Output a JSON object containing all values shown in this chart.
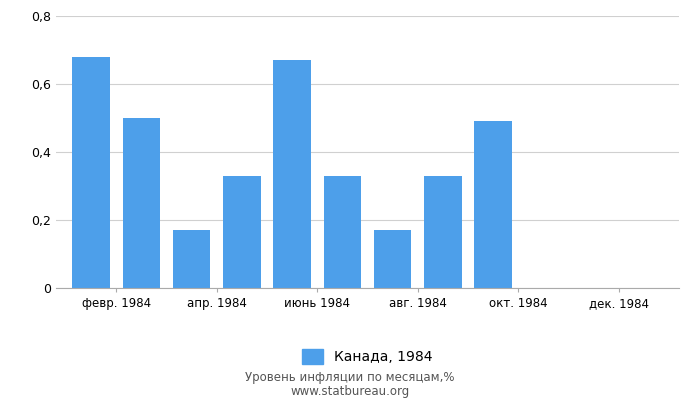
{
  "all_values": [
    0.68,
    0.5,
    0.17,
    0.33,
    0.67,
    0.33,
    0.17,
    0.33,
    0.49,
    0.0,
    0.0,
    0.0
  ],
  "tick_positions": [
    1.5,
    3.5,
    5.5,
    7.5,
    9.5,
    11.5
  ],
  "tick_labels": [
    "февр. 1984",
    "апр. 1984",
    "июнь 1984",
    "авг. 1984",
    "окт. 1984",
    "дек. 1984"
  ],
  "bar_color": "#4d9fea",
  "ylim": [
    0,
    0.8
  ],
  "yticks": [
    0,
    0.2,
    0.4,
    0.6,
    0.8
  ],
  "ytick_labels": [
    "0",
    "0,2",
    "0,4",
    "0,6",
    "0,8"
  ],
  "legend_label": "Канада, 1984",
  "footer_line1": "Уровень инфляции по месяцам,%",
  "footer_line2": "www.statbureau.org",
  "background_color": "#ffffff",
  "grid_color": "#d0d0d0"
}
